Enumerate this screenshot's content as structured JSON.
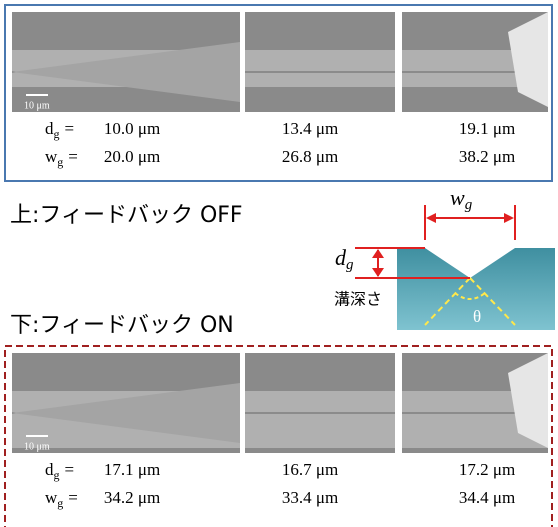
{
  "top_panel": {
    "scale_bar": "10 μm",
    "rows": [
      {
        "symbol": "d",
        "subscript": "g",
        "operator": "=",
        "values": [
          "10.0 μm",
          "13.4 μm",
          "19.1 μm"
        ]
      },
      {
        "symbol": "w",
        "subscript": "g",
        "operator": "=",
        "values": [
          "20.0 μm",
          "26.8 μm",
          "38.2 μm"
        ]
      }
    ]
  },
  "top_label": "上:フィードバック OFF",
  "bottom_label": "下:フィードバック ON",
  "diagram": {
    "width_symbol": "w",
    "width_subscript": "g",
    "depth_symbol": "d",
    "depth_subscript": "g",
    "depth_label": "溝深さ",
    "angle_label": "θ"
  },
  "bottom_panel": {
    "scale_bar": "10 μm",
    "rows": [
      {
        "symbol": "d",
        "subscript": "g",
        "operator": "=",
        "values": [
          "17.1 μm",
          "16.7 μm",
          "17.2 μm"
        ]
      },
      {
        "symbol": "w",
        "subscript": "g",
        "operator": "=",
        "values": [
          "34.2 μm",
          "33.4 μm",
          "34.4 μm"
        ]
      }
    ]
  }
}
